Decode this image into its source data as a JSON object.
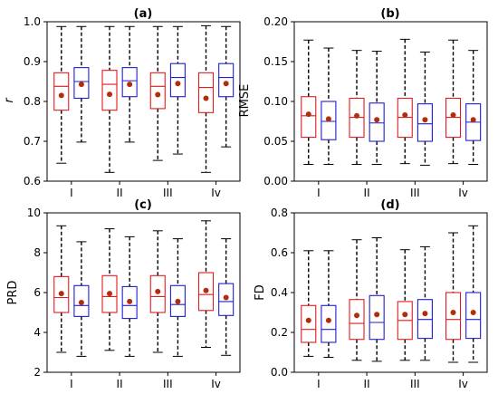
{
  "chart_data": [
    {
      "type": "box",
      "title": "(a)",
      "ylabel": "r",
      "ylabel_italic": true,
      "ylim": [
        0.6,
        1.0
      ],
      "yticks": [
        0.6,
        0.7,
        0.8,
        0.9,
        1.0
      ],
      "ytick_labels": [
        "0.6",
        "0.7",
        "0.8",
        "0.9",
        "1.0"
      ],
      "categories": [
        "I",
        "II",
        "III",
        "Iv"
      ],
      "series": [
        {
          "color": "#e41a1c",
          "boxes": [
            {
              "whislo": 0.645,
              "q1": 0.778,
              "med": 0.838,
              "q3": 0.872,
              "whishi": 0.988,
              "mean": 0.815
            },
            {
              "whislo": 0.622,
              "q1": 0.778,
              "med": 0.843,
              "q3": 0.878,
              "whishi": 0.988,
              "mean": 0.818
            },
            {
              "whislo": 0.652,
              "q1": 0.782,
              "med": 0.838,
              "q3": 0.872,
              "whishi": 0.988,
              "mean": 0.817
            },
            {
              "whislo": 0.622,
              "q1": 0.772,
              "med": 0.835,
              "q3": 0.872,
              "whishi": 0.99,
              "mean": 0.808
            }
          ]
        },
        {
          "color": "#1f1fd1",
          "boxes": [
            {
              "whislo": 0.698,
              "q1": 0.808,
              "med": 0.85,
              "q3": 0.885,
              "whishi": 0.988,
              "mean": 0.843
            },
            {
              "whislo": 0.698,
              "q1": 0.812,
              "med": 0.852,
              "q3": 0.885,
              "whishi": 0.988,
              "mean": 0.843
            },
            {
              "whislo": 0.668,
              "q1": 0.812,
              "med": 0.86,
              "q3": 0.895,
              "whishi": 0.988,
              "mean": 0.845
            },
            {
              "whislo": 0.686,
              "q1": 0.812,
              "med": 0.86,
              "q3": 0.895,
              "whishi": 0.988,
              "mean": 0.845
            }
          ]
        }
      ]
    },
    {
      "type": "box",
      "title": "(b)",
      "ylabel": "RMSE",
      "ylabel_italic": false,
      "ylim": [
        0.0,
        0.2
      ],
      "yticks": [
        0.0,
        0.05,
        0.1,
        0.15,
        0.2
      ],
      "ytick_labels": [
        "0.00",
        "0.05",
        "0.10",
        "0.15",
        "0.20"
      ],
      "categories": [
        "I",
        "II",
        "III",
        "Iv"
      ],
      "series": [
        {
          "color": "#e41a1c",
          "boxes": [
            {
              "whislo": 0.021,
              "q1": 0.055,
              "med": 0.082,
              "q3": 0.106,
              "whishi": 0.177,
              "mean": 0.084
            },
            {
              "whislo": 0.021,
              "q1": 0.055,
              "med": 0.08,
              "q3": 0.104,
              "whishi": 0.164,
              "mean": 0.082
            },
            {
              "whislo": 0.022,
              "q1": 0.055,
              "med": 0.08,
              "q3": 0.104,
              "whishi": 0.178,
              "mean": 0.083
            },
            {
              "whislo": 0.022,
              "q1": 0.055,
              "med": 0.08,
              "q3": 0.104,
              "whishi": 0.177,
              "mean": 0.083
            }
          ]
        },
        {
          "color": "#1f1fd1",
          "boxes": [
            {
              "whislo": 0.021,
              "q1": 0.052,
              "med": 0.075,
              "q3": 0.1,
              "whishi": 0.167,
              "mean": 0.078
            },
            {
              "whislo": 0.021,
              "q1": 0.05,
              "med": 0.073,
              "q3": 0.098,
              "whishi": 0.163,
              "mean": 0.077
            },
            {
              "whislo": 0.02,
              "q1": 0.05,
              "med": 0.072,
              "q3": 0.097,
              "whishi": 0.162,
              "mean": 0.077
            },
            {
              "whislo": 0.021,
              "q1": 0.051,
              "med": 0.074,
              "q3": 0.097,
              "whishi": 0.164,
              "mean": 0.077
            }
          ]
        }
      ]
    },
    {
      "type": "box",
      "title": "(c)",
      "ylabel": "PRD",
      "ylabel_italic": false,
      "ylim": [
        2,
        10
      ],
      "yticks": [
        2,
        4,
        6,
        8,
        10
      ],
      "ytick_labels": [
        "2",
        "4",
        "6",
        "8",
        "10"
      ],
      "categories": [
        "I",
        "II",
        "III",
        "Iv"
      ],
      "series": [
        {
          "color": "#e41a1c",
          "boxes": [
            {
              "whislo": 3.0,
              "q1": 5.0,
              "med": 5.75,
              "q3": 6.8,
              "whishi": 9.35,
              "mean": 5.95
            },
            {
              "whislo": 3.1,
              "q1": 5.0,
              "med": 5.8,
              "q3": 6.85,
              "whishi": 9.2,
              "mean": 5.95
            },
            {
              "whislo": 3.0,
              "q1": 5.0,
              "med": 5.8,
              "q3": 6.85,
              "whishi": 9.1,
              "mean": 6.05
            },
            {
              "whislo": 3.25,
              "q1": 5.1,
              "med": 5.9,
              "q3": 7.0,
              "whishi": 9.6,
              "mean": 6.1
            }
          ]
        },
        {
          "color": "#1f1fd1",
          "boxes": [
            {
              "whislo": 2.8,
              "q1": 4.8,
              "med": 5.35,
              "q3": 6.35,
              "whishi": 8.55,
              "mean": 5.5
            },
            {
              "whislo": 2.8,
              "q1": 4.7,
              "med": 5.35,
              "q3": 6.3,
              "whishi": 8.8,
              "mean": 5.55
            },
            {
              "whislo": 2.8,
              "q1": 4.8,
              "med": 5.4,
              "q3": 6.35,
              "whishi": 8.7,
              "mean": 5.55
            },
            {
              "whislo": 2.85,
              "q1": 4.85,
              "med": 5.55,
              "q3": 6.45,
              "whishi": 8.7,
              "mean": 5.75
            }
          ]
        }
      ]
    },
    {
      "type": "box",
      "title": "(d)",
      "ylabel": "FD",
      "ylabel_italic": false,
      "ylim": [
        0.0,
        0.8
      ],
      "yticks": [
        0.0,
        0.2,
        0.4,
        0.6,
        0.8
      ],
      "ytick_labels": [
        "0.0",
        "0.2",
        "0.4",
        "0.6",
        "0.8"
      ],
      "categories": [
        "I",
        "II",
        "III",
        "Iv"
      ],
      "series": [
        {
          "color": "#e41a1c",
          "boxes": [
            {
              "whislo": 0.08,
              "q1": 0.15,
              "med": 0.215,
              "q3": 0.335,
              "whishi": 0.61,
              "mean": 0.26
            },
            {
              "whislo": 0.06,
              "q1": 0.165,
              "med": 0.245,
              "q3": 0.365,
              "whishi": 0.665,
              "mean": 0.285
            },
            {
              "whislo": 0.06,
              "q1": 0.165,
              "med": 0.26,
              "q3": 0.355,
              "whishi": 0.615,
              "mean": 0.29
            },
            {
              "whislo": 0.05,
              "q1": 0.165,
              "med": 0.265,
              "q3": 0.4,
              "whishi": 0.7,
              "mean": 0.3
            }
          ]
        },
        {
          "color": "#1f1fd1",
          "boxes": [
            {
              "whislo": 0.075,
              "q1": 0.15,
              "med": 0.215,
              "q3": 0.335,
              "whishi": 0.61,
              "mean": 0.26
            },
            {
              "whislo": 0.055,
              "q1": 0.165,
              "med": 0.25,
              "q3": 0.385,
              "whishi": 0.675,
              "mean": 0.29
            },
            {
              "whislo": 0.06,
              "q1": 0.17,
              "med": 0.265,
              "q3": 0.365,
              "whishi": 0.63,
              "mean": 0.295
            },
            {
              "whislo": 0.05,
              "q1": 0.17,
              "med": 0.265,
              "q3": 0.4,
              "whishi": 0.735,
              "mean": 0.3
            }
          ]
        }
      ]
    }
  ],
  "colors": {
    "mean_marker": "#b22d0a",
    "axis": "#000000"
  }
}
